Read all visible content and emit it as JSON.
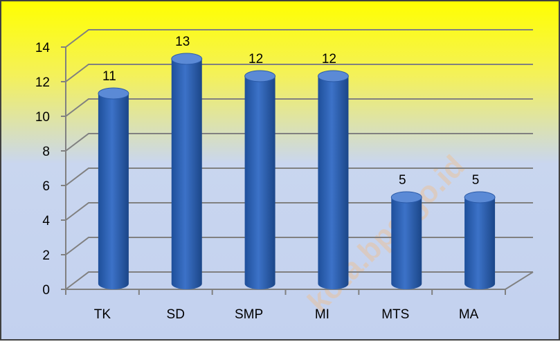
{
  "chart_data": {
    "type": "bar",
    "categories": [
      "TK",
      "SD",
      "SMP",
      "MI",
      "MTS",
      "MA"
    ],
    "values": [
      11,
      13,
      12,
      12,
      5,
      5
    ],
    "color": "#3c72c8",
    "ylim": [
      0,
      14
    ],
    "yticks": [
      0,
      2,
      4,
      6,
      8,
      10,
      12,
      14
    ],
    "grid": true,
    "watermark": "kota.bps.go.id"
  }
}
